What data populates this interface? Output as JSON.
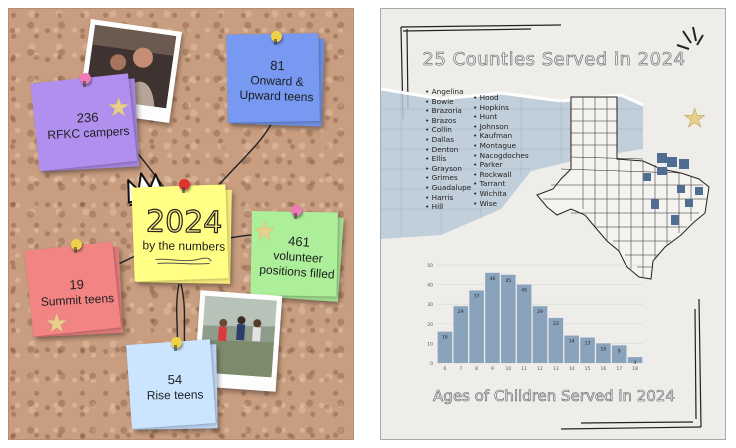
{
  "left": {
    "center_note": {
      "year": "2024",
      "caption": "by the numbers"
    },
    "notes": [
      {
        "id": "rfkc",
        "number": "236",
        "label": "RFKC campers",
        "color": "#a484dc"
      },
      {
        "id": "onward",
        "number": "81",
        "label": "Onward & Upward teens",
        "color": "#6e8ee0"
      },
      {
        "id": "volunteer",
        "number": "461",
        "label": "volunteer positions filled",
        "color": "#9fdc8e"
      },
      {
        "id": "summit",
        "number": "19",
        "label": "Summit teens",
        "color": "#e07a7a"
      },
      {
        "id": "rise",
        "number": "54",
        "label": "Rise teens",
        "color": "#bcd3f2"
      }
    ]
  },
  "right": {
    "title": "25 Counties Served in 2024",
    "counties_col1": [
      "Angelina",
      "Bowie",
      "Brazoria",
      "Brazos",
      "Collin",
      "Dallas",
      "Denton",
      "Ellis",
      "Grayson",
      "Grimes",
      "Guadalupe",
      "Harris",
      "Hill"
    ],
    "counties_col2": [
      "Hood",
      "Hopkins",
      "Hunt",
      "Johnson",
      "Kaufman",
      "Montague",
      "Nacogdoches",
      "Parker",
      "Rockwall",
      "Tarrant",
      "Wichita",
      "Wise"
    ],
    "chart_title": "Ages of Children Served in 2024"
  },
  "chart_data": {
    "type": "bar",
    "title": "Ages of Children Served in 2024",
    "categories": [
      "6",
      "7",
      "8",
      "9",
      "10",
      "11",
      "12",
      "13",
      "14",
      "15",
      "16",
      "17",
      "18"
    ],
    "values": [
      16,
      29,
      37,
      46,
      45,
      40,
      29,
      23,
      14,
      13,
      10,
      9,
      3
    ],
    "ylim": [
      0,
      50
    ],
    "yticks": [
      0,
      10,
      20,
      30,
      40,
      50
    ],
    "grid": true,
    "bar_color": "#8aa3bd"
  }
}
